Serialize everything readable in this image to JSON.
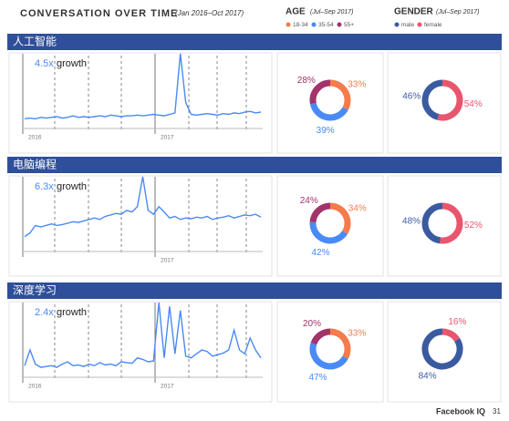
{
  "header": {
    "title": "CONVERSATION OVER TIME",
    "period": "(Jan 2016–Oct 2017)",
    "age": {
      "title": "AGE",
      "period": "(Jul–Sep 2017)",
      "categories": [
        "18-34",
        "35-54",
        "55+"
      ],
      "colors": [
        "#f47b4b",
        "#4a8af4",
        "#a3336b"
      ]
    },
    "gender": {
      "title": "GENDER",
      "period": "(Jul–Sep 2017)",
      "categories": [
        "male",
        "female"
      ],
      "colors": [
        "#3a5ba0",
        "#e8566e"
      ]
    }
  },
  "sections": [
    {
      "title": "人工智能",
      "charts": [
        {
          "type": "line",
          "annotation_value": "4.5x",
          "annotation": "growth",
          "xtick_labels": [
            "2016",
            "2017"
          ],
          "color": "#4a8af4",
          "values": [
            8,
            9,
            8,
            10,
            9,
            10,
            11,
            9,
            10,
            12,
            10,
            11,
            10,
            11,
            12,
            11,
            13,
            12,
            11,
            12,
            12,
            13,
            12,
            13,
            14,
            13,
            12,
            14,
            16,
            95,
            30,
            14,
            13,
            14,
            15,
            14,
            13,
            15,
            14,
            16,
            15,
            17,
            18,
            16,
            17
          ]
        },
        {
          "type": "donut",
          "values": [
            33,
            39,
            28
          ],
          "value_labels": [
            "33%",
            "39%",
            "28%"
          ]
        },
        {
          "type": "donut",
          "values": [
            46,
            54
          ],
          "value_labels": [
            "46%",
            "54%"
          ]
        }
      ]
    },
    {
      "title": "电脑编程",
      "charts": [
        {
          "type": "line",
          "annotation_value": "6.3x",
          "annotation": "growth",
          "xtick_labels": [
            null,
            "2017"
          ],
          "color": "#4a8af4",
          "values": [
            15,
            20,
            30,
            28,
            30,
            32,
            30,
            31,
            33,
            35,
            34,
            36,
            38,
            40,
            38,
            42,
            44,
            46,
            45,
            50,
            48,
            55,
            95,
            50,
            45,
            55,
            48,
            40,
            42,
            38,
            40,
            39,
            41,
            40,
            42,
            38,
            40,
            41,
            43,
            40,
            42,
            44,
            43,
            45,
            41
          ]
        },
        {
          "type": "donut",
          "values": [
            34,
            42,
            24
          ],
          "value_labels": [
            "34%",
            "42%",
            "24%"
          ]
        },
        {
          "type": "donut",
          "values": [
            48,
            52
          ],
          "value_labels": [
            "48%",
            "52%"
          ]
        }
      ]
    },
    {
      "title": "深度学习",
      "charts": [
        {
          "type": "line",
          "annotation_value": "2.4x",
          "annotation": "growth",
          "xtick_labels": [
            "2016",
            "2017"
          ],
          "color": "#4a8af4",
          "values": [
            10,
            30,
            12,
            8,
            9,
            10,
            8,
            12,
            15,
            10,
            11,
            9,
            12,
            10,
            14,
            11,
            12,
            10,
            15,
            14,
            13,
            20,
            18,
            15,
            16,
            90,
            20,
            85,
            25,
            80,
            22,
            20,
            25,
            30,
            28,
            22,
            24,
            26,
            30,
            55,
            30,
            25,
            45,
            30,
            20
          ]
        },
        {
          "type": "donut",
          "values": [
            33,
            47,
            20
          ],
          "value_labels": [
            "33%",
            "47%",
            "20%"
          ]
        },
        {
          "type": "donut",
          "values": [
            84,
            16
          ],
          "value_labels": [
            "84%",
            "16%"
          ]
        }
      ]
    }
  ],
  "footer": {
    "brand": "Facebook IQ",
    "page": "31"
  }
}
